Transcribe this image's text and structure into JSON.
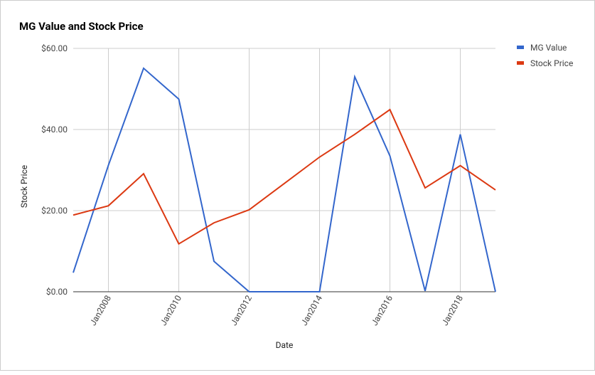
{
  "chart_data": {
    "type": "line",
    "title": "MG Value and Stock Price",
    "x_label": "Date",
    "y_label": "Stock Price",
    "x": [
      2007,
      2008,
      2009,
      2010,
      2011,
      2012,
      2013,
      2014,
      2015,
      2016,
      2017,
      2018,
      2019
    ],
    "series": [
      {
        "name": "MG Value",
        "color": "#3366cc",
        "values": [
          4.7,
          31.2,
          55.1,
          47.5,
          7.5,
          0,
          0,
          0,
          53.0,
          33.5,
          0.2,
          38.8,
          0
        ]
      },
      {
        "name": "Stock Price",
        "color": "#dc3912",
        "values": [
          18.9,
          21.2,
          29.1,
          11.8,
          17.0,
          20.2,
          26.7,
          33.2,
          38.8,
          44.9,
          25.6,
          31.1,
          25.1
        ]
      }
    ],
    "xlim": [
      2007,
      2019
    ],
    "xticks": [
      {
        "value": 2008,
        "label": "Jan2008"
      },
      {
        "value": 2010,
        "label": "Jan2010"
      },
      {
        "value": 2012,
        "label": "Jan2012"
      },
      {
        "value": 2014,
        "label": "Jan2014"
      },
      {
        "value": 2016,
        "label": "Jan2016"
      },
      {
        "value": 2018,
        "label": "Jan2018"
      }
    ],
    "ylim": [
      0,
      60
    ],
    "yticks": [
      {
        "value": 0,
        "label": "$0.00"
      },
      {
        "value": 20,
        "label": "$20.00"
      },
      {
        "value": 40,
        "label": "$40.00"
      },
      {
        "value": 60,
        "label": "$60.00"
      }
    ],
    "grid": true,
    "legend": "right"
  }
}
